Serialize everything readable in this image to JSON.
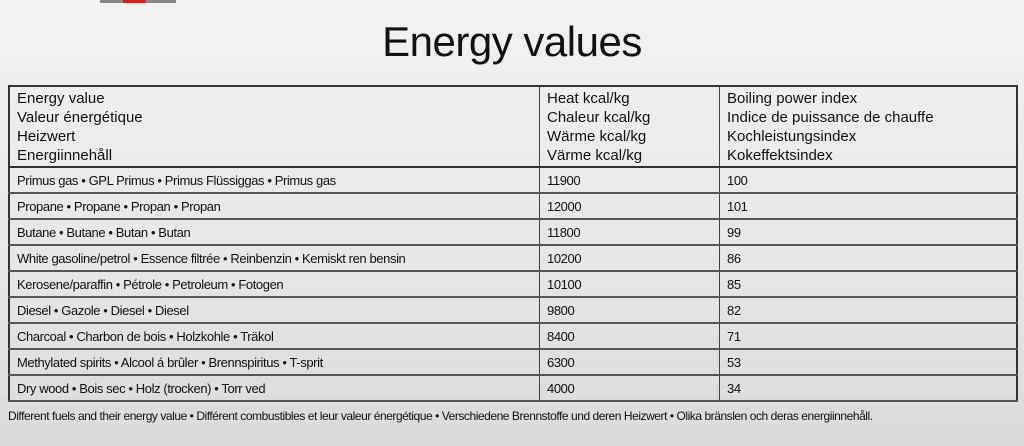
{
  "title": "Energy values",
  "table": {
    "headers": [
      [
        "Energy value",
        "Valeur énergétique",
        "Heizwert",
        "Energiinnehåll"
      ],
      [
        "Heat kcal/kg",
        "Chaleur kcal/kg",
        "Wärme kcal/kg",
        "Värme kcal/kg"
      ],
      [
        "Boiling power index",
        "Indice de puissance de chauffe",
        "Kochleistungsindex",
        "Kokeffektsindex"
      ]
    ],
    "rows": [
      {
        "fuel": "Primus gas • GPL Primus • Primus Flüssiggas • Primus gas",
        "heat": "11900",
        "index": "100"
      },
      {
        "fuel": "Propane • Propane • Propan • Propan",
        "heat": "12000",
        "index": "101"
      },
      {
        "fuel": "Butane • Butane • Butan • Butan",
        "heat": "11800",
        "index": "99"
      },
      {
        "fuel": "White gasoline/petrol • Essence filtrée • Reinbenzin • Kemiskt ren bensin",
        "heat": "10200",
        "index": "86"
      },
      {
        "fuel": "Kerosene/paraffin • Pétrole • Petroleum • Fotogen",
        "heat": "10100",
        "index": "85"
      },
      {
        "fuel": "Diesel • Gazole • Diesel • Diesel",
        "heat": "9800",
        "index": "82"
      },
      {
        "fuel": "Charcoal • Charbon de bois • Holzkohle • Träkol",
        "heat": "8400",
        "index": "71"
      },
      {
        "fuel": "Methylated spirits • Alcool á brûler • Brennspiritus • T-sprit",
        "heat": "6300",
        "index": "53"
      },
      {
        "fuel": "Dry wood • Bois sec • Holz (trocken) • Torr ved",
        "heat": "4000",
        "index": "34"
      }
    ]
  },
  "caption": "Different fuels and their energy value • Différent combustibles et leur valeur énergétique • Verschiedene Brennstoffe und deren Heizwert • Olika bränslen och deras energiinnehåll."
}
